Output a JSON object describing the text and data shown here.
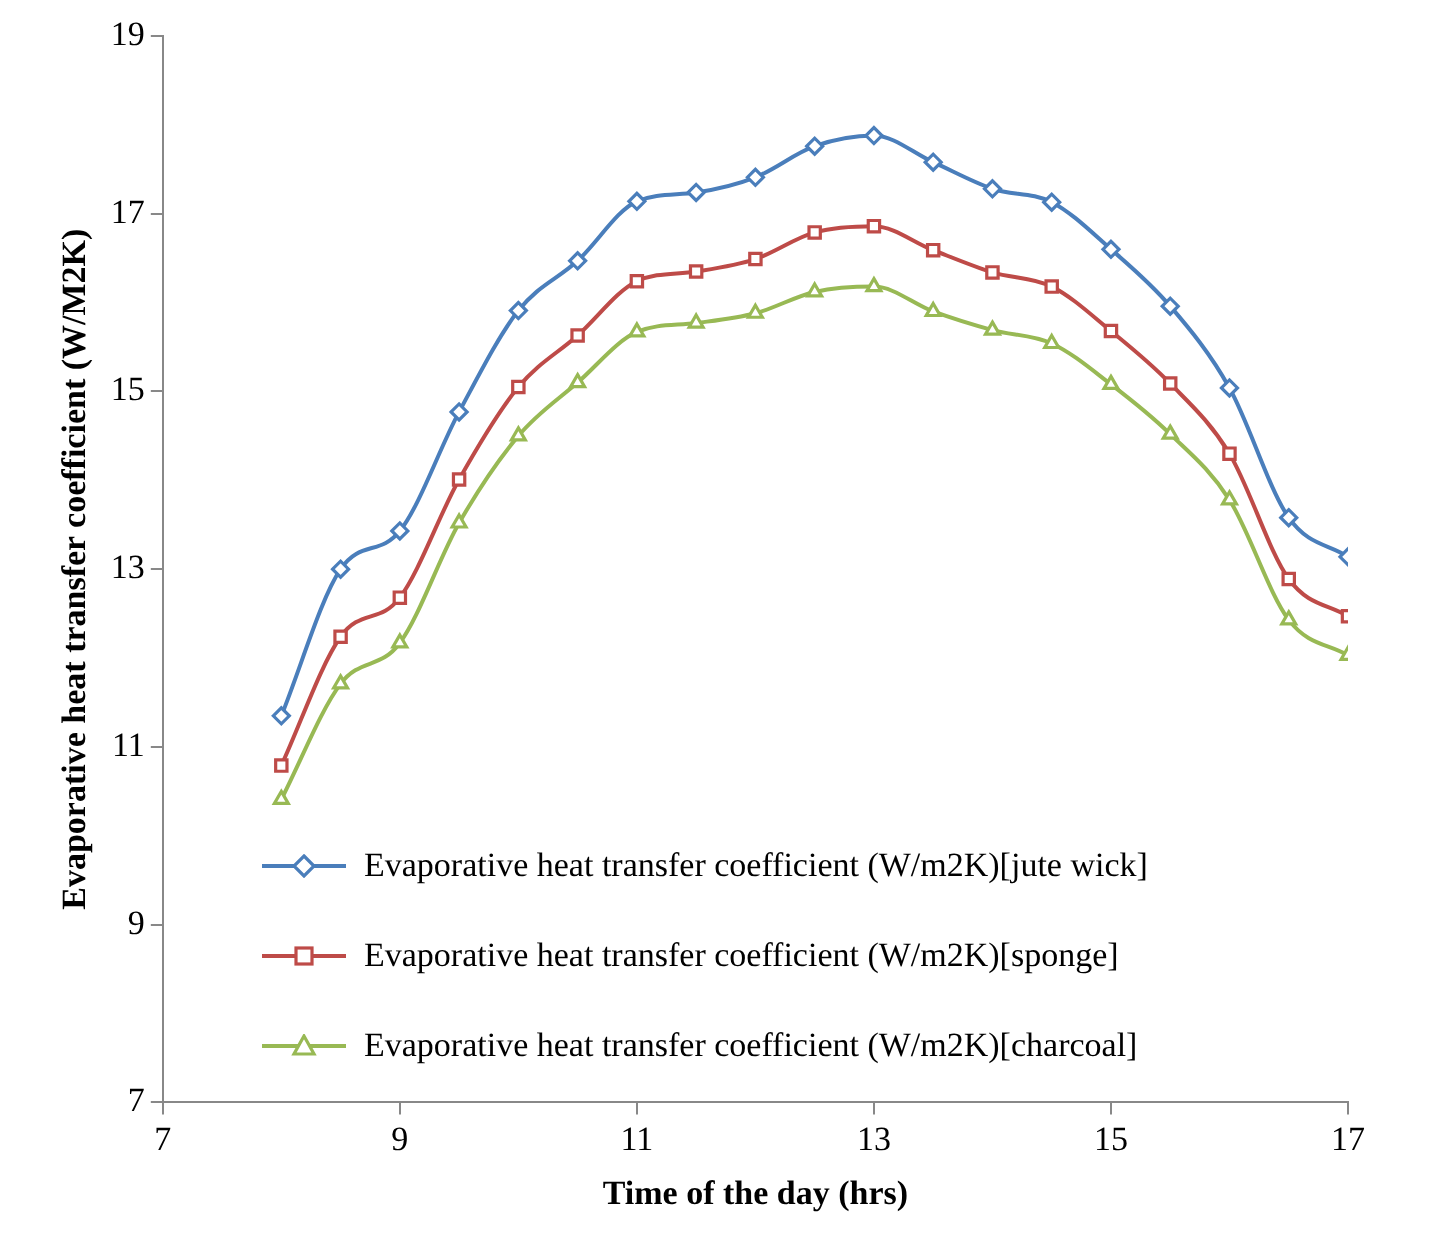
{
  "chart_data": {
    "type": "line",
    "xlabel": "Time of the day (hrs)",
    "ylabel": "Evaporative heat transfer coefficient (W/M2K)",
    "x": [
      8,
      8.5,
      9,
      9.5,
      10,
      10.5,
      11,
      11.5,
      12,
      12.5,
      13,
      13.5,
      14,
      14.5,
      15,
      15.5,
      16,
      16.5,
      17
    ],
    "series": [
      {
        "name": "Evaporative heat transfer coefficient (W/m2K)[jute wick]",
        "color": "#4a7ebb",
        "marker": "diamond",
        "values": [
          11.35,
          13.0,
          13.43,
          14.77,
          15.91,
          16.47,
          17.14,
          17.24,
          17.41,
          17.76,
          17.88,
          17.58,
          17.28,
          17.13,
          16.6,
          15.96,
          15.04,
          13.58,
          13.14
        ]
      },
      {
        "name": "Evaporative heat transfer coefficient (W/m2K)[sponge]",
        "color": "#be4b48",
        "marker": "square",
        "values": [
          10.79,
          12.24,
          12.68,
          14.01,
          15.05,
          15.63,
          16.24,
          16.35,
          16.49,
          16.79,
          16.86,
          16.59,
          16.34,
          16.18,
          15.68,
          15.09,
          14.3,
          12.89,
          12.47
        ]
      },
      {
        "name": "Evaporative heat transfer coefficient (W/m2K)[charcoal]",
        "color": "#98b954",
        "marker": "triangle",
        "values": [
          10.41,
          11.71,
          12.17,
          13.52,
          14.5,
          15.1,
          15.67,
          15.77,
          15.88,
          16.12,
          16.18,
          15.9,
          15.69,
          15.54,
          15.08,
          14.52,
          13.78,
          12.43,
          12.03
        ]
      }
    ],
    "xlim": [
      7,
      17
    ],
    "xticks": [
      7,
      9,
      11,
      13,
      15,
      17
    ],
    "ylim": [
      7,
      19
    ],
    "yticks": [
      7,
      9,
      11,
      13,
      15,
      17,
      19
    ],
    "grid": false,
    "legend": "bottom",
    "line_style": "solid"
  }
}
